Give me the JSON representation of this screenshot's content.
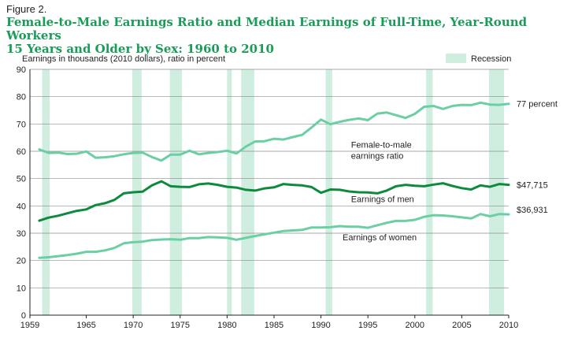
{
  "figure_label": "Figure 2.",
  "title_line1": "Female-to-Male Earnings Ratio and Median Earnings of Full-Time, Year-Round Workers",
  "title_line2": "15 Years and Older by Sex: 1960 to 2010",
  "chart_data": {
    "type": "line",
    "ylabel": "Earnings in thousands (2010 dollars), ratio in percent",
    "xlim": [
      1959,
      2010
    ],
    "ylim": [
      0,
      90
    ],
    "x_ticks": [
      "1959",
      "1965",
      "1970",
      "1975",
      "1980",
      "1985",
      "1990",
      "1995",
      "2000",
      "2005",
      "2010"
    ],
    "y_ticks": [
      "0",
      "10",
      "20",
      "30",
      "40",
      "50",
      "60",
      "70",
      "80",
      "90"
    ],
    "legend": {
      "label": "Recession",
      "position": "top-right"
    },
    "recessions": [
      [
        1960.3,
        1961.1
      ],
      [
        1969.9,
        1970.9
      ],
      [
        1973.9,
        1975.2
      ],
      [
        1980.0,
        1980.5
      ],
      [
        1981.5,
        1982.9
      ],
      [
        1990.5,
        1991.2
      ],
      [
        2001.2,
        2001.9
      ],
      [
        2007.9,
        2009.5
      ]
    ],
    "colors": {
      "ratio": "#6ccfa3",
      "men": "#0e8a3c",
      "women": "#6ccfa3",
      "recession": "#cfeee0",
      "title": "#1a9c59"
    },
    "x": [
      1960,
      1961,
      1962,
      1963,
      1964,
      1965,
      1966,
      1967,
      1968,
      1969,
      1970,
      1971,
      1972,
      1973,
      1974,
      1975,
      1976,
      1977,
      1978,
      1979,
      1980,
      1981,
      1982,
      1983,
      1984,
      1985,
      1986,
      1987,
      1988,
      1989,
      1990,
      1991,
      1992,
      1993,
      1994,
      1995,
      1996,
      1997,
      1998,
      1999,
      2000,
      2001,
      2002,
      2003,
      2004,
      2005,
      2006,
      2007,
      2008,
      2009,
      2010
    ],
    "series": [
      {
        "key": "ratio",
        "label_lines": [
          "Female-to-male",
          "earnings ratio"
        ],
        "end_label": "77 percent",
        "values": [
          60.7,
          59.4,
          59.5,
          59.0,
          59.1,
          59.9,
          57.6,
          57.8,
          58.2,
          58.9,
          59.4,
          59.5,
          57.9,
          56.6,
          58.8,
          58.8,
          60.2,
          58.9,
          59.4,
          59.7,
          60.2,
          59.2,
          61.7,
          63.6,
          63.7,
          64.6,
          64.3,
          65.2,
          66.0,
          68.7,
          71.6,
          69.9,
          70.8,
          71.5,
          72.0,
          71.4,
          73.8,
          74.2,
          73.2,
          72.2,
          73.7,
          76.3,
          76.6,
          75.5,
          76.6,
          77.0,
          76.9,
          77.8,
          77.1,
          77.0,
          77.4
        ]
      },
      {
        "key": "men",
        "label_lines": [
          "Earnings of men"
        ],
        "end_label": "$47,715",
        "values": [
          34.6,
          35.7,
          36.4,
          37.3,
          38.2,
          38.7,
          40.3,
          41.0,
          42.2,
          44.6,
          45.0,
          45.2,
          47.5,
          49.0,
          47.2,
          47.0,
          46.9,
          47.9,
          48.2,
          47.7,
          47.0,
          46.7,
          45.9,
          45.6,
          46.4,
          46.8,
          48.0,
          47.7,
          47.5,
          46.9,
          44.8,
          46.0,
          45.9,
          45.3,
          45.0,
          44.9,
          44.6,
          45.6,
          47.2,
          47.7,
          47.4,
          47.2,
          47.8,
          48.3,
          47.3,
          46.5,
          46.0,
          47.5,
          47.0,
          48.0,
          47.7
        ]
      },
      {
        "key": "women",
        "label_lines": [
          "Earnings of women"
        ],
        "end_label": "$36,931",
        "values": [
          21.0,
          21.2,
          21.6,
          22.0,
          22.5,
          23.2,
          23.2,
          23.7,
          24.6,
          26.3,
          26.7,
          26.9,
          27.5,
          27.7,
          27.8,
          27.6,
          28.2,
          28.2,
          28.6,
          28.5,
          28.3,
          27.6,
          28.3,
          29.0,
          29.6,
          30.2,
          30.8,
          31.0,
          31.2,
          32.1,
          32.1,
          32.2,
          32.6,
          32.4,
          32.4,
          32.0,
          32.9,
          33.8,
          34.5,
          34.5,
          34.9,
          36.0,
          36.6,
          36.5,
          36.2,
          35.8,
          35.4,
          37.0,
          36.2,
          37.0,
          36.9
        ]
      }
    ]
  }
}
